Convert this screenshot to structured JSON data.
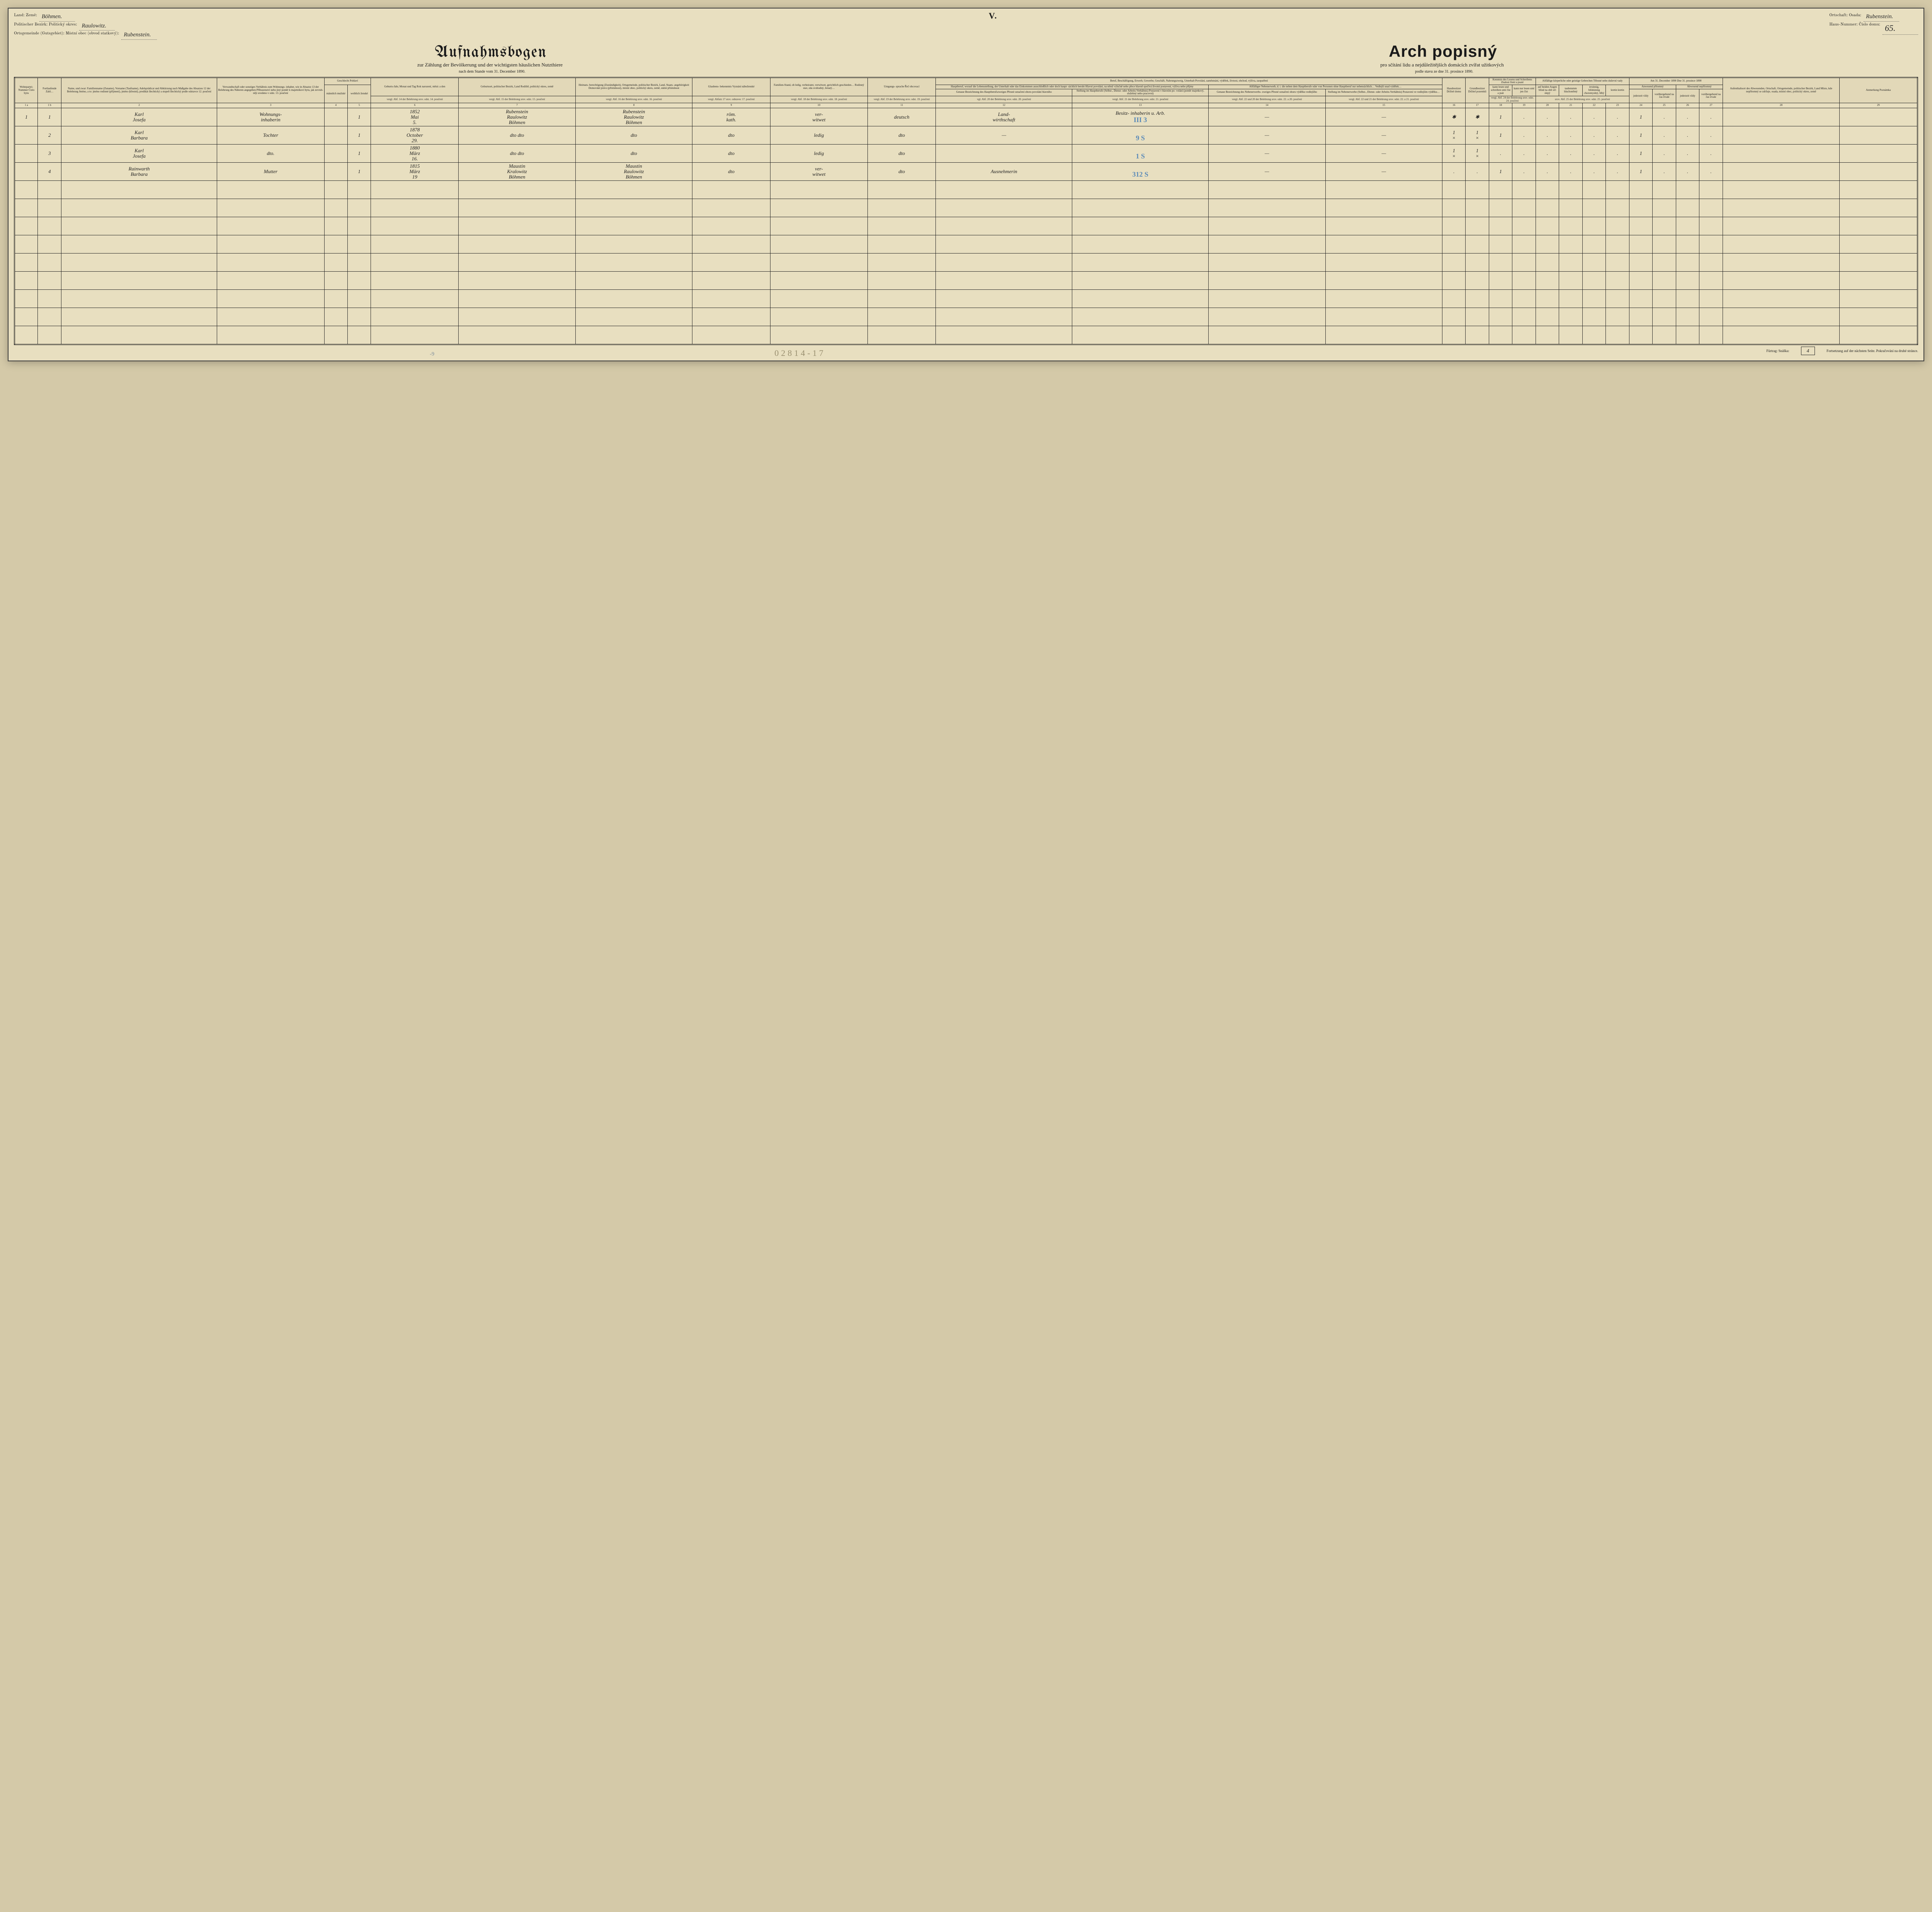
{
  "roman": "V.",
  "top_left": {
    "land_label": "Land:\nZemě:",
    "land_value": "Böhmen.",
    "bezirk_label": "Politischer Bezirk:\nPolitický okres:",
    "bezirk_value": "Raulowitz.",
    "ortsgemeinde_label": "Ortsgemeinde (Gutsgebiet):\nMístní obec (obvod statkový):",
    "ortsgemeinde_value": "Rubenstein."
  },
  "top_right": {
    "ortschaft_label": "Ortschaft:\nOsada:",
    "ortschaft_value": "Rubenstein.",
    "hausnr_label": "Haus-Nummer:\nČíslo domu:",
    "hausnr_value": "65."
  },
  "title_de": "Aufnahmsbogen",
  "title_cz": "Arch popisný",
  "subtitle_de": "zur Zählung der Bevölkerung und der wichtigsten häuslichen Nutzthiere",
  "subtitle_cz": "pro sčítání lidu a nejdůležitějších domácích zvířat užitkových",
  "date_de": "nach dem Stande vom 31. December 1890.",
  "date_cz": "podle stavu ze dne 31. prosince 1890.",
  "headers": {
    "c1": "Wohnpartei-Nummer\nČíslo bytu",
    "c1b": "Fortlaufende Zahl…",
    "c2": "Name,\nund zwar:\nFamilienname (Zuname),\nVorname (Taufname),\nAdelsprädicat und Abkürzung\nnach Maßgabe des Absatzes 12\nder Belehrung\n\nJméno,\na to:\njméno rodinné (příjmení),\njméno (křestní),\npredikát šlechtický a stupeň\nšlechtický podle odstavce 12.\npoučení",
    "c3": "Verwandtschaft\noder sonstiges\nVerhältnis zum\nWohnungs-\ninhaber, wie in\nAbsatze 13 der\nBelehrung des\nNäheren angegeben\n\nPříbuzenství\nnebo jiný poměr\nk majetníkovi\nbytu, jak zevrub-\nněji uvedeno\nv odst. 13. poučení",
    "c4": "Geschlecht\nPohlaví",
    "c4a": "männlich\nmužské",
    "c4b": "weiblich\nženské",
    "c5": "Geburts-Jahr,\nMonat\nund Tag\n\nRok narození,\nměsíc\na den",
    "c6": "Geburtsort,\npolitischer Bezirk,\nLand\n\nRodiště,\npolitický okres,\nzemě",
    "c7": "Heimats-\nberechtigung\n(Zuständigkeit),\nOrtsgemeinde,\npolitischer Bezirk,\nLand,\nStaats-\nangehörigkeit\n\nDomovské právo\n(příslušnost),\nmístní obec,\npolitický okres,\nzemě,\nstátní příslušnost",
    "c8": "Glaubens-\nbekenntnis\n\nVyznání\nnáboženské",
    "c9": "Familien-Stand,\nob ledig, verheiratet,\nverwitwet, gerichtlich\ngeschieden…\n\nRodinný stav,\nzda svobodný,\nženatý…",
    "c10": "Umgangs-\nsprache\n\nŘeč\nobcovací",
    "c11": "Beruf, Beschäftigung, Erwerb, Gewerbe, Geschäft, Nahrungszweig, Unterhalt\nPovolání, zaměstnání, výdělek, živnost, obchod, výživa, zaopatření",
    "c11a": "Hauptberuf,\nworauf die Lebensstellung, der Unterhalt oder\ndas Einkommen ausschließlich oder doch haupt-\nsächlich beruht\nHlavní povolání,\nna němž výlučně nebo přece hlavně spočívá\nživotní postavení, výživa nebo příjmy",
    "c11a1": "Genaue Bezeichnung des\nHauptberufszweiges\nPřesné označení\noboru\npovolání hlavního",
    "c11a2": "Stellung im Hauptberufe\n(Selbst-, Dienst- oder\nArbeits-Verhältnis)\nPostavení v hlavním po-\nvolání (poměr majetkový,\nslužebný nebo pracovní)",
    "c11b": "Allfälliger Nebenerwerb,\nd. i. die neben dem Hauptberufe oder von Personen\nohne Hauptberuf nur nebensächlich…\nVedlejší snad výdělek…",
    "c11b1": "Genaue Bezeichnung\ndes Nebenerwerbs-\nzweiges\nPřesné označení\noboru\nvýdělku vedlejšího",
    "c11b2": "Stellung im Nebenerwerbe\n(Selbst-, Dienst- oder\nArbeits-Verhältnis)\nPostavení ve vedlejším\nvýdělku…",
    "c12": "Hausbesitzer\nDržitel domu",
    "c12b": "Grundbesitzer\nDržitel pozemků",
    "c13": "Kenntnis des\nLesens und\nSchreibens\nZnalost\nčtení a psaní",
    "c13a": "kann lesen und schreiben\numí číst a psát",
    "c13b": "kann nur lesen\numí jen číst",
    "c14": "Allfällige körperliche\noder geistige Gebrechen\nTělesné nebo duševní\nvady",
    "c14a": "auf beiden Augen blind\nna obě oči slepý",
    "c14b": "taubstumm\nhluchoněmý",
    "c14c": "irrsinnig, blödsinnig\nchoromyslný, blbý",
    "c14d": "kretin\nkretin",
    "c15": "Am 31. December 1890\nDne 31. prosince 1890",
    "c15a": "Anwesend\npřítomný",
    "c15b": "Abwesend\nnepřítomný",
    "c15a1": "jederzeit\nvždy",
    "c15a2": "vorübergehend na čas\ntrvale",
    "c15b1": "jederzeit\nvždy",
    "c15b2": "vorübergehend na čas\ntrvale",
    "c16": "Aufenthaltsort des\nAbwesenden,\nOrtschaft,\nOrtsgemeinde,\npolitischer Bezirk,\nLand\n\nMísto,\nkde nepřítomný\nse zdržuje,\nosada, místní\nobec, politický\nokres, země",
    "c17": "Anmerkung\n\nPoznámka",
    "ref5": "vergl. Abf. 14\nder Belehrung\nsrov. odst. 14.\npoučení",
    "ref6": "vergl. Abf. 15\nder Belehrung\nsrov. odst. 15.\npoučení",
    "ref7": "vergl. Abf. 16\nder Belehrung\nsrov. odst. 16.\npoučení",
    "ref8": "vergl. Abfatz 17\nsrov. odstavec 17.\npoučení",
    "ref9": "vergl. Abf. 18\nder Belehrung\nsrov. odst. 18.\npoučení",
    "ref10": "vergl. Abf. 19\nder Belehrung\nsrov. odst. 19.\npoučení",
    "ref12": "vgl. Abf. 20 der Belehrung\nsrov. odst. 20. poučení",
    "ref13": "vergl. Abf. 21 der Belehrung\nsrov. odst. 21. poučení",
    "ref14": "vergl. Abf. 22 und 20\nder Belehrung\nsrov. odst. 22. a 20.\npoučení",
    "ref15": "vergl. Abf. 22 und 21\nder Belehrung\nsrov. odst. 22. a 21.\npoučení",
    "ref16": "vergl. Abf. 23\nsrov. odst. 23.",
    "ref18": "vergl. Abf. 24\nder Belehrung\nsrov. odst. 24.\npoučení",
    "ref20": "srov. Abf. 25 der Belehrung\nsrov. odst. 25. poučení",
    "ref24": "srov. Abf. 26 der Belehrung\nsrov. odst. 26. poučení",
    "ref28": "vergl. Abf. 27 der\nBelehrung\nsrov. odst. 27.\npoučení"
  },
  "colnums": [
    "1 a",
    "1 b",
    "2",
    "3",
    "4",
    "5",
    "6",
    "7",
    "8",
    "9",
    "10",
    "11",
    "12",
    "13",
    "14",
    "15",
    "16",
    "17",
    "18",
    "19",
    "20",
    "21",
    "22",
    "23",
    "24",
    "25",
    "26",
    "27",
    "28",
    "29"
  ],
  "rows": [
    {
      "n1": "1",
      "n2": "1",
      "name": "Karl\nJosefa",
      "rel": "Wohnungs-\ninhaberin",
      "m": "",
      "f": "1",
      "born": "1852\nMai\n5.",
      "place": "Rubenstein\nRaulowitz\nBöhmen",
      "heimat": "Rubenstein\nRaulowitz\nBöhmen",
      "rel_conf": "röm.\nkath.",
      "fam": "ver-\nwitwet",
      "lang": "deutsch",
      "beruf": "Land-\nwirthschaft",
      "stell": "Besitz-\ninhaberin\nu. Arb.",
      "blue": "III 3",
      "neb": "—",
      "neb2": "—",
      "hb": "✱",
      "gb": "✱",
      "read": "1",
      "readonly": ".",
      "b": ".",
      "t": ".",
      "i": ".",
      "k": ".",
      "p1": "1",
      "p2": ".",
      "a1": ".",
      "a2": ".",
      "ort": "",
      "anm": ""
    },
    {
      "n1": "",
      "n2": "2",
      "name": "Karl\nBarbara",
      "rel": "Tochter",
      "m": "",
      "f": "1",
      "born": "1878\nOctober\n29.",
      "place": "dto dto",
      "heimat": "dto",
      "rel_conf": "dto",
      "fam": "ledig",
      "lang": "dto",
      "beruf": "—",
      "stell": "",
      "blue": "9 S",
      "neb": "—",
      "neb2": "—",
      "hb": "1\n×",
      "gb": "1\n×",
      "read": "1",
      "readonly": ".",
      "b": ".",
      "t": ".",
      "i": ".",
      "k": ".",
      "p1": "1",
      "p2": ".",
      "a1": ".",
      "a2": ".",
      "ort": "",
      "anm": ""
    },
    {
      "n1": "",
      "n2": "3",
      "name": "Karl\nJosefa",
      "rel": "dto.",
      "m": "",
      "f": "1",
      "born": "1880\nMärz\n16.",
      "place": "dto dto",
      "heimat": "dto",
      "rel_conf": "dto",
      "fam": "ledig",
      "lang": "dto",
      "beruf": "",
      "stell": "",
      "blue": "1 S",
      "neb": "—",
      "neb2": "—",
      "hb": "1\n×",
      "gb": "1\n×",
      "read": ".",
      "readonly": ".",
      "b": ".",
      "t": ".",
      "i": ".",
      "k": ".",
      "p1": "1",
      "p2": ".",
      "a1": ".",
      "a2": ".",
      "ort": "",
      "anm": ""
    },
    {
      "n1": "",
      "n2": "4",
      "name": "Rainwarth\nBarbara",
      "rel": "Mutter",
      "m": "",
      "f": "1",
      "born": "1815\nMärz\n19",
      "place": "Maustin\nKralowitz\nBöhmen",
      "heimat": "Maustin\nRaulowitz\nBöhmen",
      "rel_conf": "dto",
      "fam": "ver-\nwitwet",
      "lang": "dto",
      "beruf": "Ausnehmerin",
      "stell": "",
      "blue": "312 S",
      "neb": "—",
      "neb2": "—",
      "hb": ".",
      "gb": ".",
      "read": "1",
      "readonly": ".",
      "b": ".",
      "t": ".",
      "i": ".",
      "k": ".",
      "p1": "1",
      "p2": ".",
      "a1": ".",
      "a2": ".",
      "ort": "",
      "anm": ""
    }
  ],
  "footer": {
    "furtrag": "Fürtrag:\nSnáška:",
    "furtrag_val": "4",
    "cont": "Fortsetzung auf der nächsten Seite.\nPokračování na druhé stránce."
  },
  "scribble": "02814-17",
  "scribble2": "-9"
}
